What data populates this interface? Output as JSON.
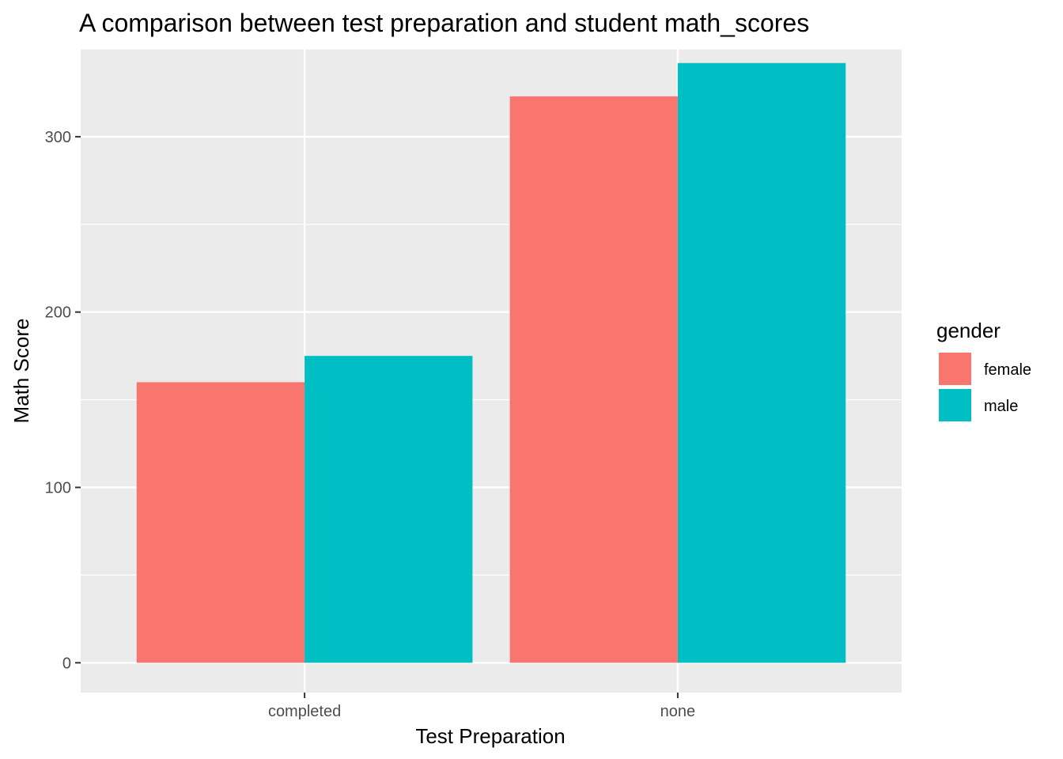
{
  "chart_data": {
    "type": "bar",
    "title": "A comparison between test preparation and student math_scores",
    "xlabel": "Test Preparation",
    "ylabel": "Math Score",
    "categories": [
      "completed",
      "none"
    ],
    "series": [
      {
        "name": "female",
        "color": "#F8766D",
        "values": [
          160,
          323
        ]
      },
      {
        "name": "male",
        "color": "#00BFC4",
        "values": [
          175,
          342
        ]
      }
    ],
    "ylim": [
      -17,
      350
    ],
    "yticks": [
      0,
      100,
      200,
      300
    ],
    "grid": true,
    "legend": {
      "title": "gender",
      "position": "right"
    },
    "panel_background": "#EBEBEB"
  }
}
